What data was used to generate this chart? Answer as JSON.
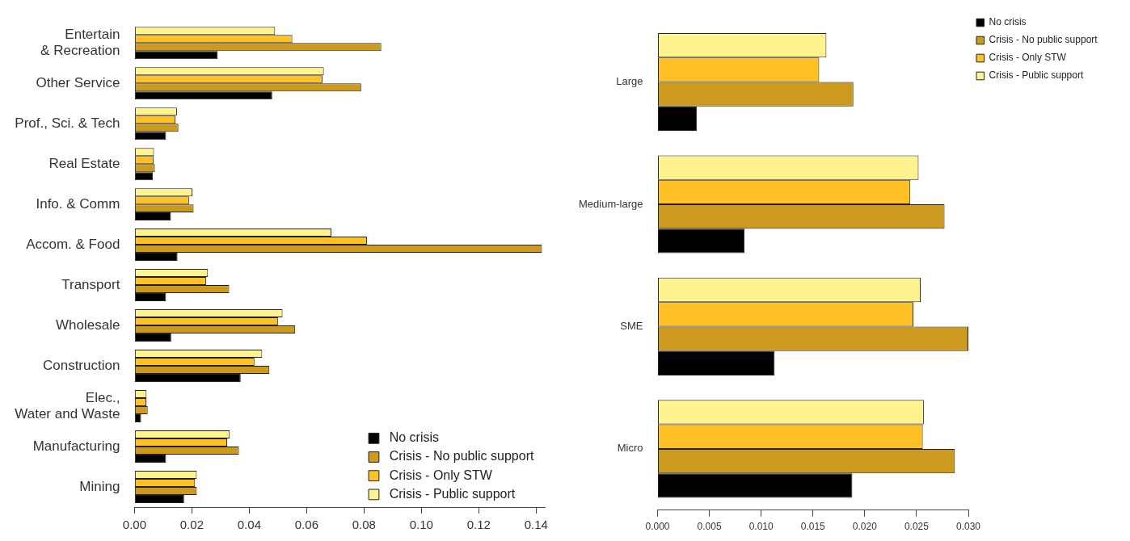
{
  "chart_data": [
    {
      "type": "bar",
      "orientation": "horizontal",
      "categories": [
        "Entertain\n& Recreation",
        "Other Service",
        "Prof., Sci. & Tech",
        "Real Estate",
        "Info. & Comm",
        "Accom. & Food",
        "Transport",
        "Wholesale",
        "Construction",
        "Elec.,\nWater and Waste",
        "Manufacturing",
        "Mining"
      ],
      "series": [
        {
          "name": "No crisis",
          "color": "#000000",
          "values": [
            0.029,
            0.048,
            0.011,
            0.0064,
            0.0127,
            0.015,
            0.011,
            0.0128,
            0.037,
            0.0023,
            0.011,
            0.0173
          ]
        },
        {
          "name": "Crisis - No public support",
          "color": "#cc9a1f",
          "values": [
            0.086,
            0.079,
            0.0153,
            0.0071,
            0.0206,
            0.142,
            0.033,
            0.056,
            0.047,
            0.0046,
            0.0364,
            0.0217
          ]
        },
        {
          "name": "Crisis - Only STW",
          "color": "#ffc125",
          "values": [
            0.055,
            0.0655,
            0.0143,
            0.0067,
            0.019,
            0.081,
            0.025,
            0.05,
            0.0418,
            0.0041,
            0.0323,
            0.0211
          ]
        },
        {
          "name": "Crisis - Public support",
          "color": "#fff38f",
          "values": [
            0.049,
            0.066,
            0.0148,
            0.0068,
            0.0202,
            0.0686,
            0.0256,
            0.0516,
            0.0445,
            0.0042,
            0.0332,
            0.0217
          ]
        }
      ],
      "xlim": [
        0,
        0.143
      ],
      "xticks": [
        {
          "value": 0,
          "label": "0.00"
        },
        {
          "value": 0.02,
          "label": "0.02"
        },
        {
          "value": 0.04,
          "label": "0.04"
        },
        {
          "value": 0.06,
          "label": "0.06"
        },
        {
          "value": 0.08,
          "label": "0.08"
        },
        {
          "value": 0.1,
          "label": "0.10"
        },
        {
          "value": 0.12,
          "label": "0.12"
        },
        {
          "value": 0.14,
          "label": "0.14"
        }
      ],
      "legend": "bottom right"
    },
    {
      "type": "bar",
      "orientation": "horizontal",
      "categories": [
        "Large",
        "Medium-large",
        "SME",
        "Micro"
      ],
      "series": [
        {
          "name": "No crisis",
          "color": "#000000",
          "values": [
            0.0038,
            0.0084,
            0.0113,
            0.0188
          ]
        },
        {
          "name": "Crisis - No public support",
          "color": "#cc9a1f",
          "values": [
            0.0189,
            0.0277,
            0.03,
            0.0287
          ]
        },
        {
          "name": "Crisis - Only STW",
          "color": "#ffc125",
          "values": [
            0.0156,
            0.0244,
            0.0247,
            0.0256
          ]
        },
        {
          "name": "Crisis - Public support",
          "color": "#fff38f",
          "values": [
            0.0163,
            0.0252,
            0.0254,
            0.0257
          ]
        }
      ],
      "xlim": [
        0,
        0.03
      ],
      "xticks": [
        {
          "value": 0,
          "label": "0.000"
        },
        {
          "value": 0.005,
          "label": "0.005"
        },
        {
          "value": 0.01,
          "label": "0.010"
        },
        {
          "value": 0.015,
          "label": "0.015"
        },
        {
          "value": 0.02,
          "label": "0.020"
        },
        {
          "value": 0.025,
          "label": "0.025"
        },
        {
          "value": 0.03,
          "label": "0.030"
        }
      ],
      "legend": "top right"
    }
  ]
}
